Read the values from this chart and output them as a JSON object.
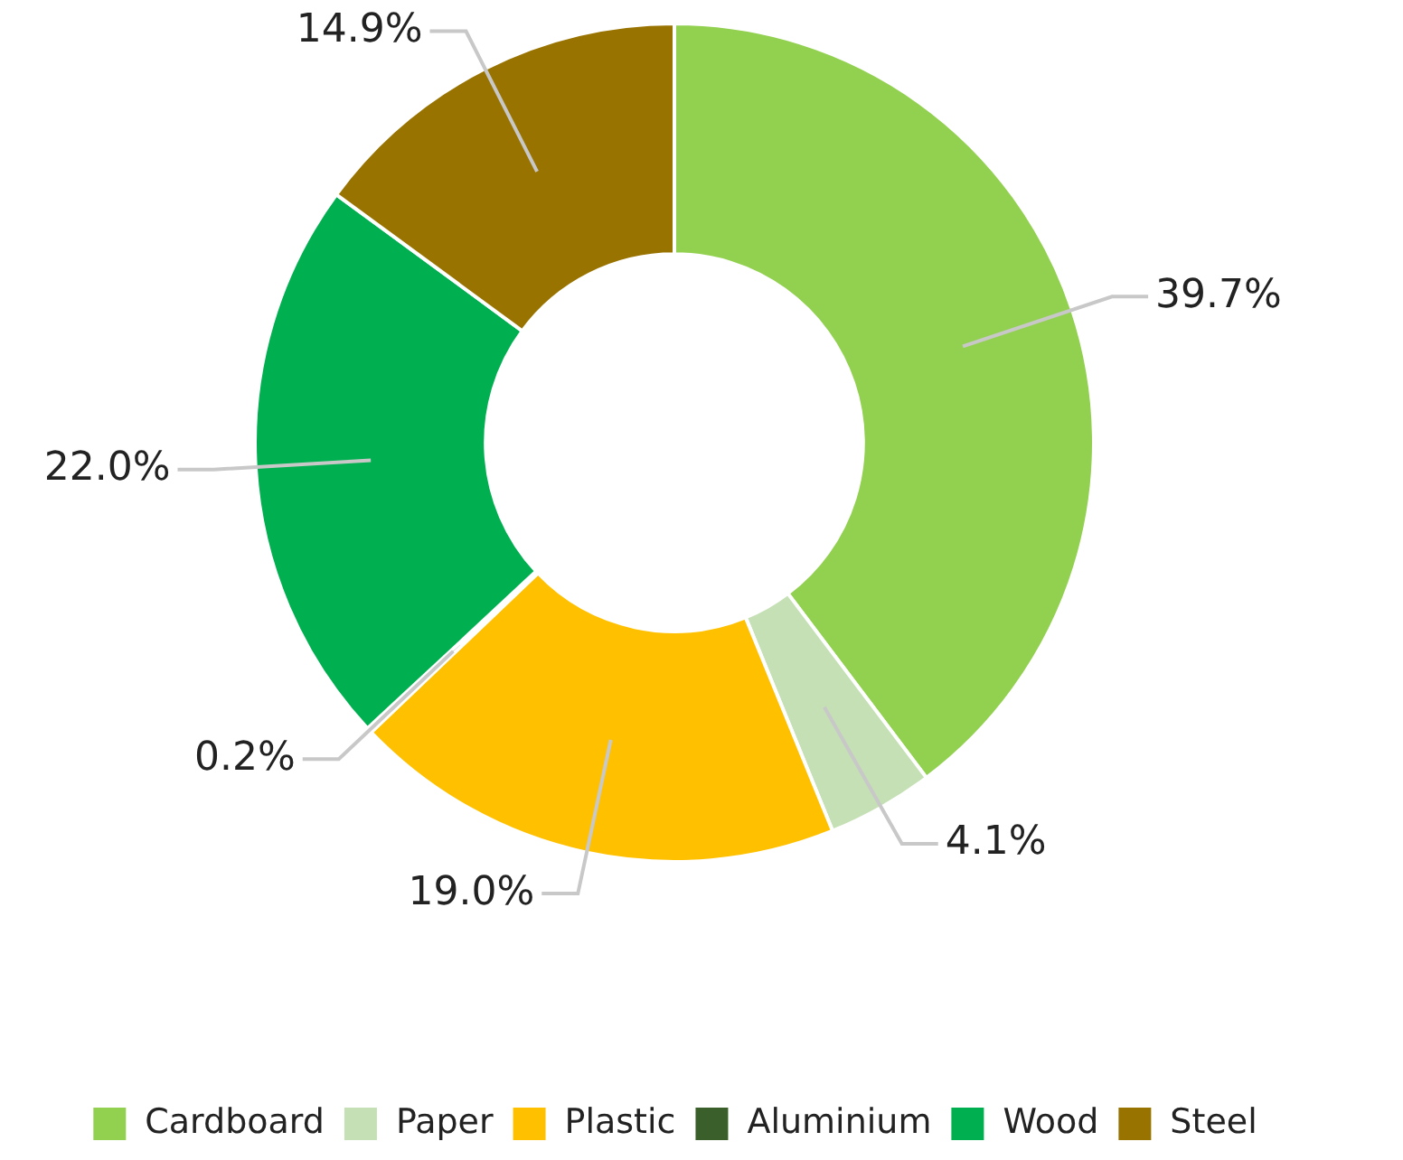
{
  "chart_data": {
    "type": "donut",
    "categories": [
      "Cardboard",
      "Paper",
      "Plastic",
      "Aluminium",
      "Wood",
      "Steel"
    ],
    "values": [
      39.7,
      4.1,
      19.0,
      0.2,
      22.0,
      14.9
    ],
    "value_labels": [
      "39.7%",
      "4.1%",
      "19.0%",
      "0.2%",
      "22.0%",
      "14.9%"
    ],
    "colors": [
      "#92d050",
      "#c5e0b4",
      "#ffc000",
      "#3a5f2a",
      "#00b050",
      "#997300"
    ],
    "legend": "bottom"
  }
}
